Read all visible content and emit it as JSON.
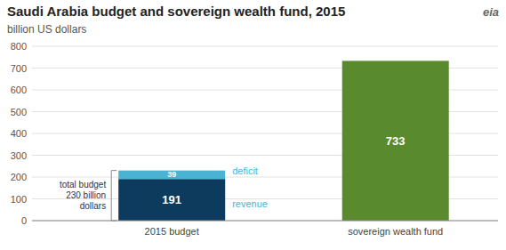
{
  "chart_data": {
    "type": "bar",
    "stacked": true,
    "title": "Saudi Arabia budget and sovereign wealth fund, 2015",
    "subtitle": "billion US dollars",
    "categories": [
      "2015 budget",
      "sovereign wealth fund"
    ],
    "series": [
      {
        "color": "#0d3b5e",
        "values": [
          191,
          null
        ]
      },
      {
        "color": "#4ab3d4",
        "values": [
          39,
          null
        ]
      },
      {
        "color": "#5a8a2e",
        "values": [
          null,
          733
        ]
      }
    ],
    "ylim": [
      0,
      800
    ],
    "yticks": [
      0,
      100,
      200,
      300,
      400,
      500,
      600,
      700,
      800
    ],
    "grid": true,
    "data_labels": true,
    "annotations": [
      "total budget\n230 billion\ndollars",
      "deficit",
      "revenue",
      "eia"
    ]
  }
}
